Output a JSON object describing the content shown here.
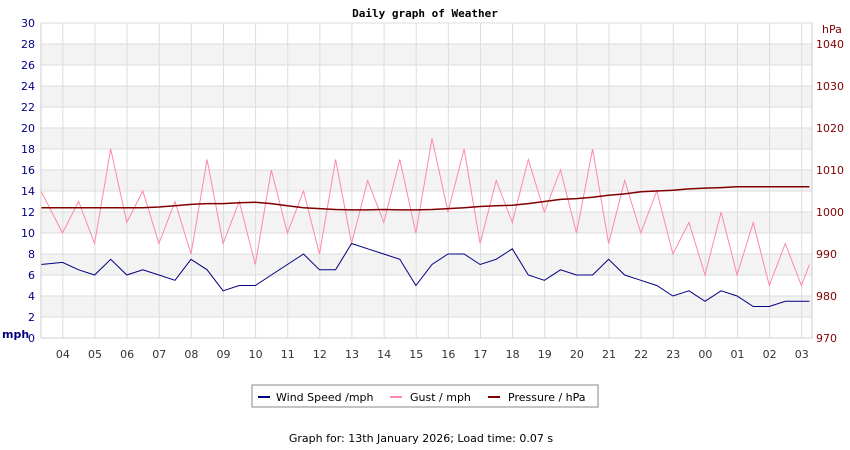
{
  "chart_data": {
    "type": "line",
    "title": "Daily graph of Weather",
    "ylabel_left": "mph",
    "ylabel_right": "hPa",
    "ylim_left": [
      0,
      30
    ],
    "ylim_right": [
      970,
      1045
    ],
    "yticks_left": [
      "0",
      "2",
      "4",
      "6",
      "8",
      "10",
      "12",
      "14",
      "16",
      "18",
      "20",
      "22",
      "24",
      "26",
      "28",
      "30"
    ],
    "yticks_right": [
      "970",
      "980",
      "990",
      "1000",
      "1010",
      "1020",
      "1030",
      "1040"
    ],
    "xticks": [
      "04",
      "05",
      "06",
      "07",
      "08",
      "09",
      "10",
      "11",
      "12",
      "13",
      "14",
      "15",
      "16",
      "17",
      "18",
      "19",
      "20",
      "21",
      "22",
      "23",
      "00",
      "01",
      "02",
      "03"
    ],
    "grid": true,
    "legend_placement": "bottom",
    "x_hours_from_0320": [
      0,
      0.67,
      1.17,
      1.67,
      2.17,
      2.67,
      3.17,
      3.67,
      4.17,
      4.67,
      5.17,
      5.67,
      6.17,
      6.67,
      7.17,
      7.67,
      8.17,
      8.67,
      9.17,
      9.67,
      10.17,
      10.67,
      11.17,
      11.67,
      12.17,
      12.67,
      13.17,
      13.67,
      14.17,
      14.67,
      15.17,
      15.67,
      16.17,
      16.67,
      17.17,
      17.67,
      18.17,
      18.67,
      19.17,
      19.67,
      20.17,
      20.67,
      21.17,
      21.67,
      22.17,
      22.67,
      23.17,
      23.67,
      23.92
    ],
    "series": [
      {
        "name": "Wind Speed /mph",
        "color": "#000080",
        "values": [
          7,
          7.2,
          6.5,
          6,
          7.5,
          6,
          6.5,
          6,
          5.5,
          7.5,
          6.5,
          4.5,
          5,
          5,
          6,
          7,
          8,
          6.5,
          6.5,
          9,
          8.5,
          8,
          7.5,
          5,
          7,
          8,
          8,
          7,
          7.5,
          8.5,
          6,
          5.5,
          6.5,
          6,
          6,
          7.5,
          6,
          5.5,
          5,
          4,
          4.5,
          3.5,
          4.5,
          4,
          3,
          3,
          3.5,
          3.5,
          3.5
        ]
      },
      {
        "name": "Gust / mph",
        "color": "#ff88aa",
        "values": [
          14,
          10,
          13,
          9,
          18,
          11,
          14,
          9,
          13,
          8,
          17,
          9,
          13,
          7,
          16,
          10,
          14,
          8,
          17,
          9,
          15,
          11,
          17,
          10,
          19,
          12,
          18,
          9,
          15,
          11,
          17,
          12,
          16,
          10,
          18,
          9,
          15,
          10,
          14,
          8,
          11,
          6,
          12,
          6,
          11,
          5,
          9,
          5,
          7
        ]
      },
      {
        "name": "Pressure / hPa",
        "color": "#800000",
        "values": [
          1001,
          1001,
          1001,
          1001,
          1001,
          1001,
          1001,
          1001.2,
          1001.5,
          1001.8,
          1002,
          1002,
          1002.2,
          1002.3,
          1002,
          1001.5,
          1001,
          1000.8,
          1000.6,
          1000.5,
          1000.5,
          1000.6,
          1000.5,
          1000.5,
          1000.6,
          1000.8,
          1001,
          1001.3,
          1001.5,
          1001.6,
          1002,
          1002.5,
          1003,
          1003.2,
          1003.5,
          1004,
          1004.3,
          1004.8,
          1005,
          1005.2,
          1005.5,
          1005.7,
          1005.8,
          1006,
          1006,
          1006,
          1006,
          1006,
          1006
        ]
      }
    ]
  },
  "legend": [
    {
      "label": "Wind Speed /mph",
      "color": "#000080"
    },
    {
      "label": "Gust / mph",
      "color": "#ff88aa"
    },
    {
      "label": "Pressure / hPa",
      "color": "#800000"
    }
  ],
  "footer": "Graph for: 13th January 2026; Load time: 0.07 s"
}
